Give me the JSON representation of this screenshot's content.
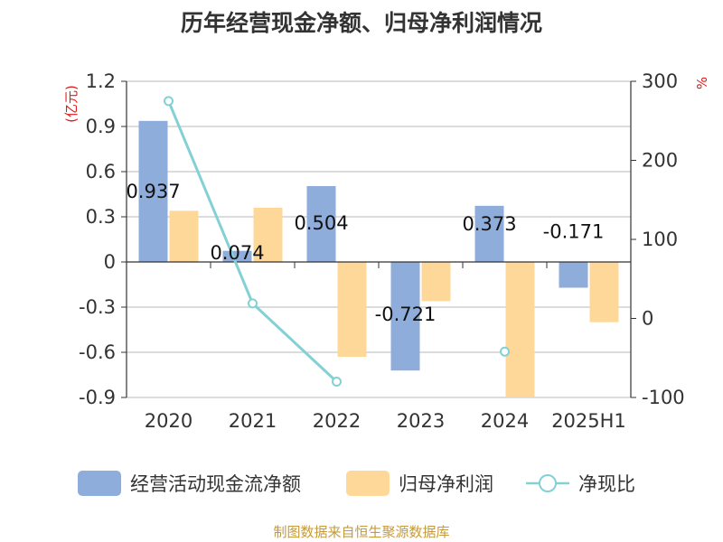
{
  "title": "历年经营现金净额、归母净利润情况",
  "source": "制图数据来自恒生聚源数据库",
  "colors": {
    "cash": "#8fadda",
    "profit": "#fdd898",
    "ratio": "#83d1d6",
    "unit": "#e01b1b"
  },
  "legend": [
    "经营活动现金流净额",
    "归母净利润",
    "净现比"
  ],
  "chart_data": {
    "type": "bar",
    "categories": [
      "2020",
      "2021",
      "2022",
      "2023",
      "2024",
      "2025H1"
    ],
    "left_axis": {
      "unit": "(亿元)",
      "ylim": [
        -0.9,
        1.2
      ],
      "ticks": [
        "1.2",
        "0.9",
        "0.6",
        "0.3",
        "0",
        "-0.3",
        "-0.6",
        "-0.9"
      ]
    },
    "right_axis": {
      "unit": "%",
      "ylim": [
        -100,
        300
      ],
      "ticks": [
        "300",
        "200",
        "100",
        "0",
        "-100"
      ]
    },
    "series": [
      {
        "name": "经营活动现金流净额",
        "type": "bar",
        "axis": "left",
        "values": [
          0.937,
          0.074,
          0.504,
          -0.721,
          0.373,
          -0.171
        ],
        "labels": [
          "0.937",
          "0.074",
          "0.504",
          "-0.721",
          "0.373",
          "-0.171"
        ]
      },
      {
        "name": "归母净利润",
        "type": "bar",
        "axis": "left",
        "values": [
          0.34,
          0.36,
          -0.63,
          -0.26,
          -0.9,
          -0.4
        ]
      },
      {
        "name": "净现比",
        "type": "line",
        "axis": "right",
        "values": [
          275,
          19,
          -80,
          null,
          -42,
          null
        ]
      }
    ],
    "grid": true
  }
}
